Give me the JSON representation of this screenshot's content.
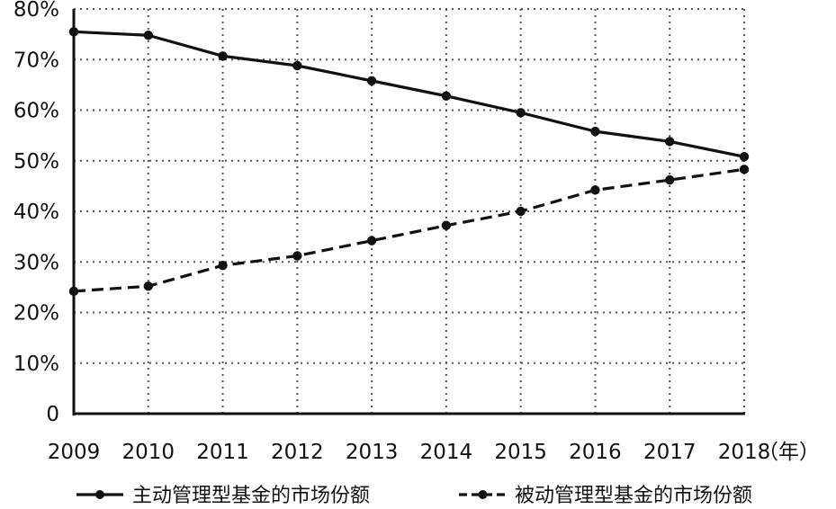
{
  "chart_data": {
    "type": "line",
    "categories": [
      "2009",
      "2010",
      "2011",
      "2012",
      "2013",
      "2014",
      "2015",
      "2016",
      "2017",
      "2018"
    ],
    "x_unit_label": "（年）",
    "y_ticks": [
      "0",
      "10%",
      "20%",
      "30%",
      "40%",
      "50%",
      "60%",
      "70%",
      "80%"
    ],
    "ylim": [
      0,
      80
    ],
    "grid": true,
    "legend_position": "bottom",
    "series": [
      {
        "name": "主动管理型基金的市场份额",
        "style": "solid",
        "color": "#111111",
        "values": [
          75.5,
          74.8,
          70.7,
          68.8,
          65.8,
          62.8,
          59.5,
          55.8,
          53.8,
          50.8
        ]
      },
      {
        "name": "被动管理型基金的市场份额",
        "style": "dashed",
        "color": "#111111",
        "values": [
          24.2,
          25.2,
          29.3,
          31.2,
          34.2,
          37.2,
          40.0,
          44.2,
          46.2,
          48.3
        ]
      }
    ]
  }
}
